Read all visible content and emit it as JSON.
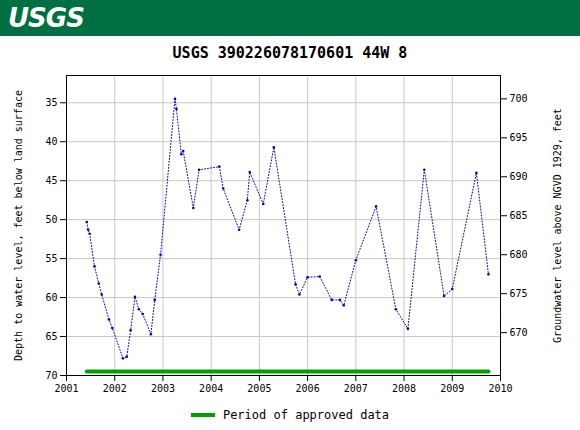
{
  "header": {
    "logo": "USGS"
  },
  "chart_data": {
    "type": "line",
    "title": "USGS 390226078170601 44W  8",
    "y_label": "Depth to water level, feet below land surface",
    "y2_label": "Groundwater level above NGVD 1929, feet",
    "x": [
      2001.42,
      2001.45,
      2001.48,
      2001.58,
      2001.67,
      2001.73,
      2001.88,
      2001.95,
      2002.17,
      2002.25,
      2002.33,
      2002.42,
      2002.5,
      2002.58,
      2002.75,
      2002.83,
      2002.95,
      2003.25,
      2003.28,
      2003.38,
      2003.42,
      2003.63,
      2003.75,
      2004.17,
      2004.25,
      2004.58,
      2004.75,
      2004.8,
      2005.08,
      2005.3,
      2005.75,
      2005.83,
      2006.0,
      2006.25,
      2006.5,
      2006.67,
      2006.75,
      2007.0,
      2007.42,
      2007.83,
      2008.08,
      2008.42,
      2008.83,
      2009.0,
      2009.5,
      2009.75
    ],
    "values": [
      50.3,
      51.3,
      51.8,
      56,
      58.2,
      59.6,
      62.8,
      63.9,
      67.8,
      67.6,
      64.2,
      59.9,
      61.5,
      62.1,
      64.7,
      60.3,
      54.5,
      34.5,
      35.8,
      41.6,
      41.2,
      48.5,
      43.6,
      43.2,
      46,
      51.3,
      47.5,
      43.9,
      48,
      40.7,
      58.3,
      59.6,
      57.4,
      57.3,
      60.3,
      60.3,
      61,
      55.2,
      48.3,
      61.5,
      64,
      43.6,
      59.8,
      58.9,
      44,
      57
    ],
    "color": "#0000cc",
    "marker": "dot",
    "line_style": "dotted",
    "xlim": [
      2001,
      2010
    ],
    "xticks": [
      2001,
      2002,
      2003,
      2004,
      2005,
      2006,
      2007,
      2008,
      2009,
      2010
    ],
    "ylim": [
      70,
      31.5
    ],
    "yticks": [
      35,
      40,
      45,
      50,
      55,
      60,
      65,
      70
    ],
    "y2lim": [
      664.5,
      703
    ],
    "y2ticks": [
      670,
      675,
      680,
      685,
      690,
      695,
      700
    ],
    "approved_period": {
      "label": "Period of approved data",
      "x": [
        2001.42,
        2009.75
      ],
      "color": "#00a000"
    },
    "grid": true,
    "legend": "bottom"
  }
}
